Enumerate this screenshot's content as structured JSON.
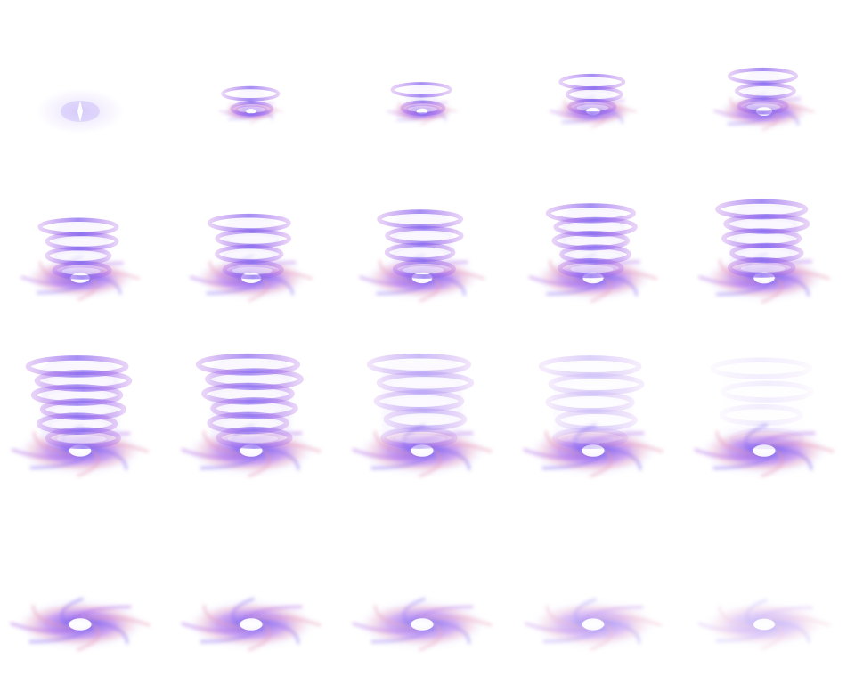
{
  "sprite_sheet": {
    "colors": {
      "background": "#ffffff",
      "violet": "#8a6cf0",
      "purple": "#b06ae6",
      "pink": "#e89ab8",
      "core": "#ffffff",
      "mist": "#e6defd"
    },
    "frames": [
      {
        "phase": "flash",
        "disk": 0.35,
        "tower": 0.0,
        "tower_levels": 0,
        "fade": 1.0
      },
      {
        "phase": "rise",
        "disk": 0.45,
        "tower": 0.18,
        "tower_levels": 2,
        "fade": 1.0
      },
      {
        "phase": "rise",
        "disk": 0.5,
        "tower": 0.22,
        "tower_levels": 2,
        "fade": 1.0
      },
      {
        "phase": "rise",
        "disk": 0.62,
        "tower": 0.3,
        "tower_levels": 3,
        "fade": 1.0
      },
      {
        "phase": "rise",
        "disk": 0.72,
        "tower": 0.36,
        "tower_levels": 3,
        "fade": 1.0
      },
      {
        "phase": "tornado",
        "disk": 0.85,
        "tower": 0.52,
        "tower_levels": 4,
        "fade": 1.0
      },
      {
        "phase": "tornado",
        "disk": 0.88,
        "tower": 0.56,
        "tower_levels": 4,
        "fade": 1.0
      },
      {
        "phase": "tornado",
        "disk": 0.9,
        "tower": 0.6,
        "tower_levels": 4,
        "fade": 1.0
      },
      {
        "phase": "tornado",
        "disk": 0.92,
        "tower": 0.66,
        "tower_levels": 5,
        "fade": 1.0
      },
      {
        "phase": "tornado",
        "disk": 0.94,
        "tower": 0.7,
        "tower_levels": 5,
        "fade": 1.0
      },
      {
        "phase": "tornado",
        "disk": 0.98,
        "tower": 0.86,
        "tower_levels": 6,
        "fade": 1.0
      },
      {
        "phase": "tornado",
        "disk": 1.0,
        "tower": 0.88,
        "tower_levels": 6,
        "fade": 0.95
      },
      {
        "phase": "dissipate",
        "disk": 1.0,
        "tower": 0.88,
        "tower_levels": 5,
        "fade": 0.6
      },
      {
        "phase": "dissipate",
        "disk": 1.0,
        "tower": 0.86,
        "tower_levels": 5,
        "fade": 0.4
      },
      {
        "phase": "dissipate",
        "disk": 1.0,
        "tower": 0.84,
        "tower_levels": 4,
        "fade": 0.15
      },
      {
        "phase": "vortex",
        "disk": 1.0,
        "tower": 0.0,
        "tower_levels": 0,
        "fade": 1.0
      },
      {
        "phase": "vortex",
        "disk": 1.0,
        "tower": 0.0,
        "tower_levels": 0,
        "fade": 0.95
      },
      {
        "phase": "vortex",
        "disk": 1.0,
        "tower": 0.0,
        "tower_levels": 0,
        "fade": 0.85
      },
      {
        "phase": "vortex",
        "disk": 0.98,
        "tower": 0.0,
        "tower_levels": 0,
        "fade": 0.65
      },
      {
        "phase": "vortex",
        "disk": 0.95,
        "tower": 0.0,
        "tower_levels": 0,
        "fade": 0.45
      }
    ]
  }
}
